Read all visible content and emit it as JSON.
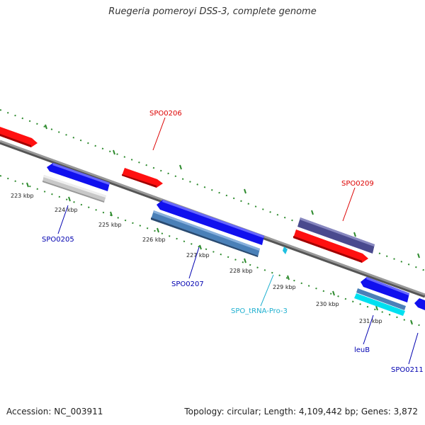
{
  "title": "Ruegeria pomeroyi DSS-3, complete genome",
  "footer": {
    "accession": "Accession: NC_003911",
    "topology": "Topology: circular; Length: 4,109,442 bp; Genes: 3,872"
  },
  "colors": {
    "backbone": "#888888",
    "tick": "#2e8b2e",
    "forward_cds": "#ff1010",
    "reverse_cds": "#1010ee",
    "gene_purple": "#4a4a8e",
    "gene_steel": "#4a80b8",
    "gene_gray": "#c8c8c8",
    "gene_cyan": "#00e0f0",
    "trna": "#20c0e0",
    "label_red": "#dd0000",
    "label_blue": "#0000b0",
    "label_cyan": "#20b0d0"
  },
  "scale_labels": [
    "223 kbp",
    "224 kbp",
    "225 kbp",
    "226 kbp",
    "227 kbp",
    "228 kbp",
    "229 kbp",
    "230 kbp",
    "231 kbp"
  ],
  "gene_labels": {
    "spo0206": "SPO0206",
    "spo0209": "SPO0209",
    "spo0205": "SPO0205",
    "spo0207": "SPO0207",
    "trna_pro3": "SPO_tRNA-Pro-3",
    "leub": "leuB",
    "spo0211": "SPO0211"
  }
}
